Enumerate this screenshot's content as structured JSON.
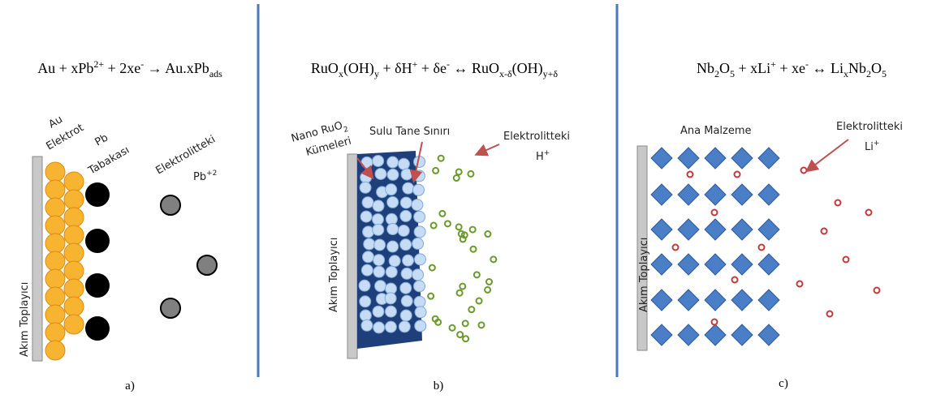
{
  "panels": [
    {
      "equation": [
        "Au + xPb",
        "2+",
        " + 2xe",
        "-",
        " → Au.xPb",
        "ads"
      ],
      "labels": {
        "au": "Au",
        "electrode": "Elektrot",
        "pb": "Pb",
        "layer": "Tabakası",
        "electrolyte": "Elektrolitteki",
        "ion": "Pb",
        "ion_charge": "+2",
        "collector": "Akım Toplayıcı"
      },
      "caption": "a)"
    },
    {
      "equation": [
        "RuO",
        "x",
        "(OH)",
        "y",
        " + δH",
        "+",
        " + δe",
        "-",
        " ↔ RuO",
        "x-δ",
        "(OH)",
        "y+δ"
      ],
      "labels": {
        "nano": "Nano RuO",
        "nano_sub": "2",
        "clusters": "Kümeleri",
        "boundary": "Sulu Tane Sınırı",
        "electrolyte": "Elektrolitteki",
        "ion": "H",
        "ion_charge": "+",
        "collector": "Akım Toplayıcı"
      },
      "caption": "b)"
    },
    {
      "equation": [
        "Nb",
        "2",
        "O",
        "5",
        " + xLi",
        "+",
        " + xe",
        "-",
        " ↔ Li",
        "x",
        "Nb",
        "2",
        "O",
        "5"
      ],
      "labels": {
        "host": "Ana Malzeme",
        "electrolyte": "Elektrolitteki",
        "ion": "Li",
        "ion_charge": "+",
        "collector": "Akım Toplayıcı"
      },
      "caption": "c)"
    }
  ]
}
